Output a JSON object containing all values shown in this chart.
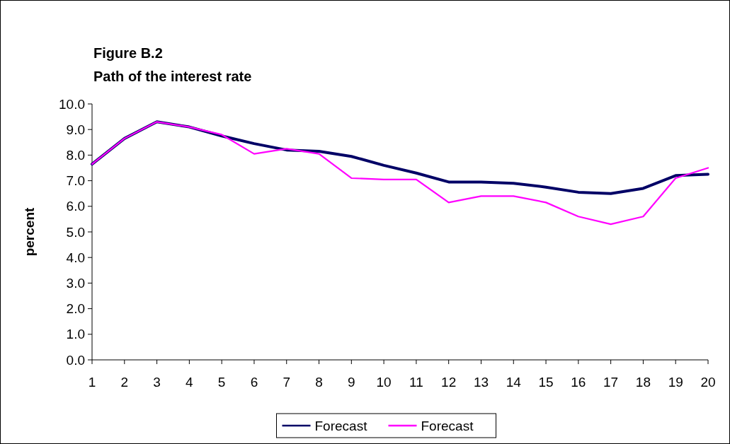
{
  "chart_data": {
    "type": "line",
    "title": "Figure B.2",
    "subtitle": "Path of the interest rate",
    "ylabel": "percent",
    "x": [
      1,
      2,
      3,
      4,
      5,
      6,
      7,
      8,
      9,
      10,
      11,
      12,
      13,
      14,
      15,
      16,
      17,
      18,
      19,
      20
    ],
    "xlim": [
      1,
      20
    ],
    "xticks": [
      1,
      2,
      3,
      4,
      5,
      6,
      7,
      8,
      9,
      10,
      11,
      12,
      13,
      14,
      15,
      16,
      17,
      18,
      19,
      20
    ],
    "ylim": [
      0,
      10
    ],
    "yticks": [
      {
        "value": 0,
        "label": "0.0"
      },
      {
        "value": 1,
        "label": "1.0"
      },
      {
        "value": 2,
        "label": "2.0"
      },
      {
        "value": 3,
        "label": "3.0"
      },
      {
        "value": 4,
        "label": "4.0"
      },
      {
        "value": 5,
        "label": "5.0"
      },
      {
        "value": 6,
        "label": "6.0"
      },
      {
        "value": 7,
        "label": "7.0"
      },
      {
        "value": 8,
        "label": "8.0"
      },
      {
        "value": 9,
        "label": "9.0"
      },
      {
        "value": 10,
        "label": "10.0"
      }
    ],
    "grid": false,
    "legend": "bottom",
    "marker": "none",
    "line_style": "solid",
    "series": [
      {
        "name": "Forecast",
        "color": "#000066",
        "values": [
          7.65,
          8.65,
          9.3,
          9.1,
          8.75,
          8.45,
          8.2,
          8.15,
          7.95,
          7.6,
          7.3,
          6.95,
          6.95,
          6.9,
          6.75,
          6.55,
          6.5,
          6.7,
          7.2,
          7.25
        ]
      },
      {
        "name": "Forecast",
        "color": "#ff00ff",
        "values": [
          7.65,
          8.65,
          9.3,
          9.1,
          8.8,
          8.05,
          8.25,
          8.05,
          7.1,
          7.05,
          7.05,
          6.15,
          6.4,
          6.4,
          6.15,
          5.6,
          5.3,
          5.6,
          7.1,
          7.5
        ]
      }
    ]
  }
}
